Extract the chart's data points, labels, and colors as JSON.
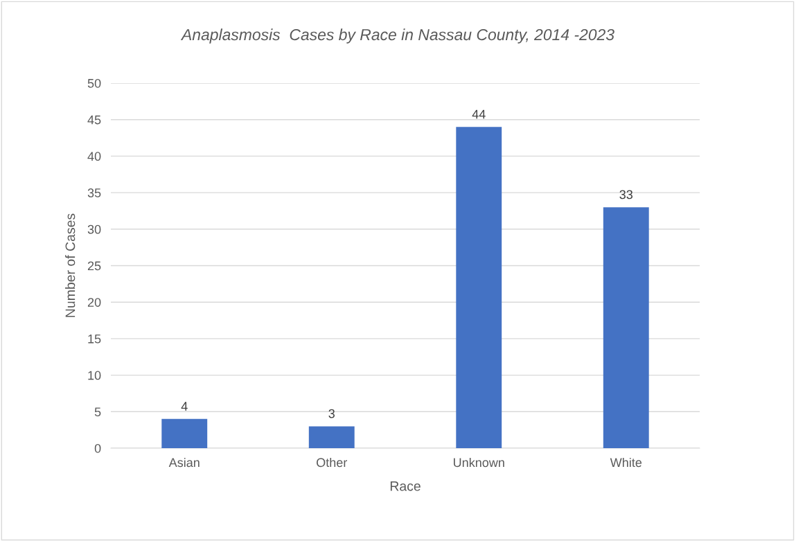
{
  "chart_data": {
    "type": "bar",
    "title": "Anaplasmosis  Cases by Race in Nassau County, 2014 -2023",
    "xlabel": "Race",
    "ylabel": "Number of Cases",
    "categories": [
      "Asian",
      "Other",
      "Unknown",
      "White"
    ],
    "values": [
      4,
      3,
      44,
      33
    ],
    "color": "#4472c4",
    "ylim": [
      0,
      50
    ],
    "yticks": [
      0,
      5,
      10,
      15,
      20,
      25,
      30,
      35,
      40,
      45,
      50
    ],
    "grid": "y",
    "data_labels": true
  }
}
